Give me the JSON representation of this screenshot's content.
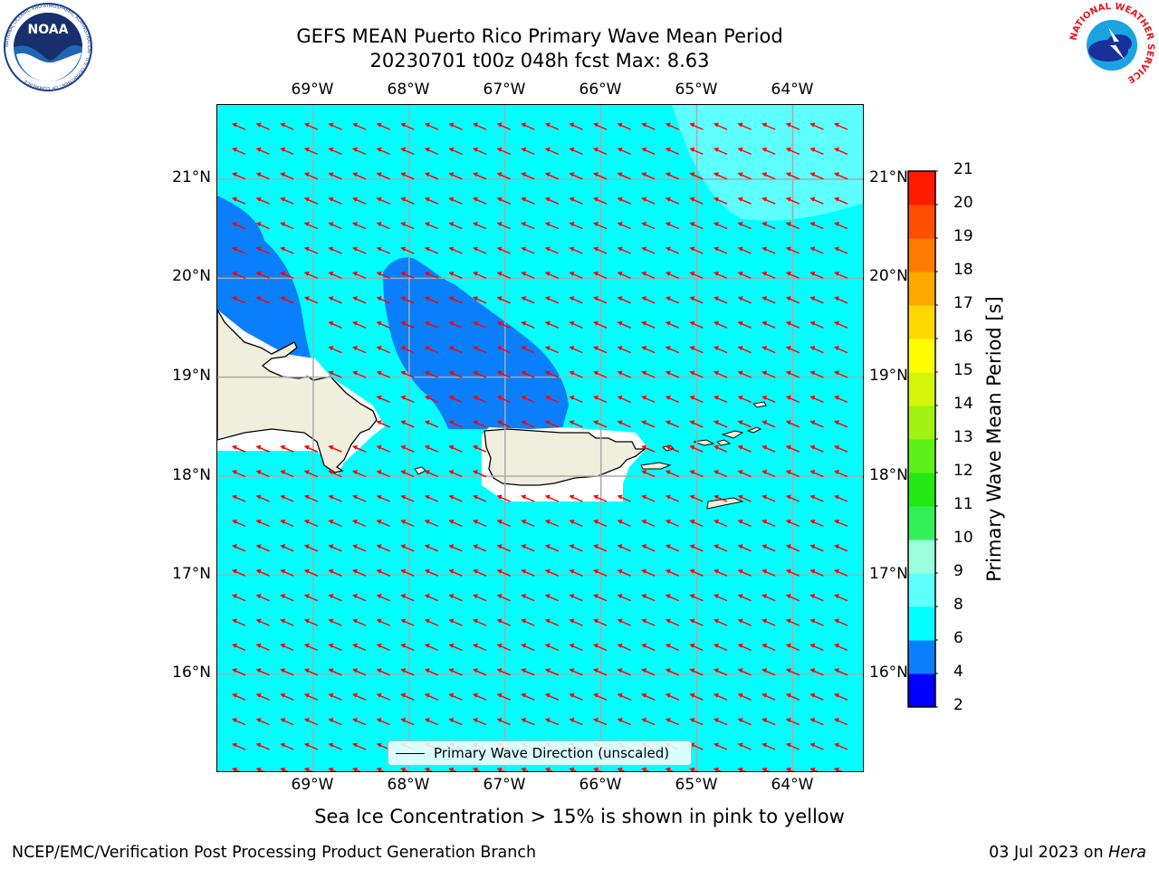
{
  "header": {
    "title_line1": "GEFS MEAN Puerto Rico Primary Wave Mean Period",
    "title_line2": "20230701 t00z 048h fcst   Max: 8.63"
  },
  "logos": {
    "noaa_text": "NOAA",
    "noaa_ring": "NATIONAL OCEANIC AND ATMOSPHERIC ADMINISTRATION · U.S. DEPARTMENT OF COMMERCE",
    "nws_ring": "NATIONAL WEATHER SERVICE"
  },
  "map": {
    "lon_labels": [
      "69°W",
      "68°W",
      "67°W",
      "66°W",
      "65°W",
      "64°W"
    ],
    "lat_labels": [
      "21°N",
      "20°N",
      "19°N",
      "18°N",
      "17°N",
      "16°N"
    ],
    "lon_range": [
      -70.0,
      -63.25
    ],
    "lat_range": [
      15.0,
      21.75
    ],
    "field_colors": {
      "period_4_6": "#0a7ffe",
      "period_6_8": "#00ffff",
      "period_8_9": "#5dffff",
      "land": "#f0eedc",
      "masked": "#ffffff"
    },
    "arrow_color": "#ff0000",
    "grid": true,
    "legend_label": "Primary Wave Direction (unscaled)"
  },
  "colorbar": {
    "label": "Primary Wave Mean Period [s]",
    "ticks": [
      "2",
      "4",
      "6",
      "8",
      "9",
      "10",
      "11",
      "12",
      "13",
      "14",
      "15",
      "16",
      "17",
      "18",
      "19",
      "20",
      "21"
    ],
    "colors": [
      "#0000ff",
      "#0a7ffe",
      "#00ffff",
      "#5dffff",
      "#9affdd",
      "#33f05a",
      "#25e812",
      "#5ef01a",
      "#9ff213",
      "#d4f508",
      "#fffd00",
      "#ffd700",
      "#ffa800",
      "#ff7b00",
      "#ff4e00",
      "#ff1a00"
    ]
  },
  "subtitle": "Sea Ice Concentration > 15% is shown in pink to yellow",
  "footer": {
    "left": "NCEP/EMC/Verification Post Processing Product Generation Branch",
    "right_prefix": "03 Jul 2023 on ",
    "right_host": "Hera"
  }
}
